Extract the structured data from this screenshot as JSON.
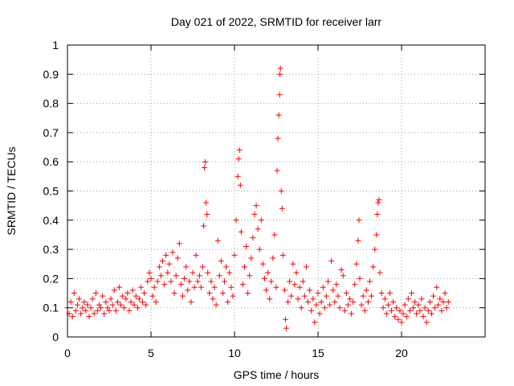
{
  "chart_data": {
    "type": "scatter",
    "title": "Day 021 of 2022, SRMTID for receiver larr",
    "xlabel": "GPS time / hours",
    "ylabel": "SRMTID / TECUs",
    "xlim": [
      0,
      25
    ],
    "ylim": [
      0,
      1
    ],
    "xticks": [
      0,
      5,
      10,
      15,
      20
    ],
    "xtick_labels": [
      "0",
      "5",
      "10",
      "15",
      "20"
    ],
    "yticks": [
      0,
      0.1,
      0.2,
      0.3,
      0.4,
      0.5,
      0.6,
      0.7,
      0.8,
      0.9,
      1
    ],
    "ytick_labels": [
      "0",
      "0.1",
      "0.2",
      "0.3",
      "0.4",
      "0.5",
      "0.6",
      "0.7",
      "0.8",
      "0.9",
      "1"
    ],
    "grid": true,
    "marker": "plus",
    "series_color": "#ff0000",
    "series": [
      {
        "name": "SRMTID",
        "points": [
          [
            0.0,
            0.1
          ],
          [
            0.1,
            0.08
          ],
          [
            0.2,
            0.12
          ],
          [
            0.3,
            0.07
          ],
          [
            0.4,
            0.15
          ],
          [
            0.5,
            0.09
          ],
          [
            0.6,
            0.11
          ],
          [
            0.7,
            0.13
          ],
          [
            0.8,
            0.08
          ],
          [
            0.9,
            0.1
          ],
          [
            1.0,
            0.12
          ],
          [
            1.1,
            0.09
          ],
          [
            1.2,
            0.11
          ],
          [
            1.3,
            0.07
          ],
          [
            1.4,
            0.1
          ],
          [
            1.5,
            0.13
          ],
          [
            1.6,
            0.08
          ],
          [
            1.7,
            0.15
          ],
          [
            1.8,
            0.09
          ],
          [
            1.9,
            0.11
          ],
          [
            2.0,
            0.1
          ],
          [
            2.1,
            0.14
          ],
          [
            2.2,
            0.08
          ],
          [
            2.3,
            0.12
          ],
          [
            2.4,
            0.1
          ],
          [
            2.5,
            0.09
          ],
          [
            2.6,
            0.13
          ],
          [
            2.7,
            0.11
          ],
          [
            2.8,
            0.16
          ],
          [
            2.9,
            0.09
          ],
          [
            3.0,
            0.12
          ],
          [
            3.1,
            0.17
          ],
          [
            3.2,
            0.11
          ],
          [
            3.3,
            0.14
          ],
          [
            3.4,
            0.1
          ],
          [
            3.5,
            0.13
          ],
          [
            3.6,
            0.15
          ],
          [
            3.7,
            0.09
          ],
          [
            3.8,
            0.12
          ],
          [
            3.9,
            0.16
          ],
          [
            4.0,
            0.11
          ],
          [
            4.1,
            0.14
          ],
          [
            4.2,
            0.1
          ],
          [
            4.3,
            0.13
          ],
          [
            4.4,
            0.17
          ],
          [
            4.5,
            0.12
          ],
          [
            4.6,
            0.15
          ],
          [
            4.7,
            0.11
          ],
          [
            4.8,
            0.19
          ],
          [
            4.9,
            0.22
          ],
          [
            5.0,
            0.2
          ],
          [
            5.1,
            0.14
          ],
          [
            5.2,
            0.17
          ],
          [
            5.3,
            0.12
          ],
          [
            5.4,
            0.19
          ],
          [
            5.5,
            0.24
          ],
          [
            5.6,
            0.21
          ],
          [
            5.7,
            0.26
          ],
          [
            5.8,
            0.18
          ],
          [
            5.9,
            0.28
          ],
          [
            6.0,
            0.22
          ],
          [
            6.1,
            0.25
          ],
          [
            6.2,
            0.19
          ],
          [
            6.3,
            0.29
          ],
          [
            6.4,
            0.15
          ],
          [
            6.5,
            0.21
          ],
          [
            6.6,
            0.27
          ],
          [
            6.7,
            0.32
          ],
          [
            6.8,
            0.18
          ],
          [
            6.9,
            0.14
          ],
          [
            7.0,
            0.2
          ],
          [
            7.1,
            0.24
          ],
          [
            7.2,
            0.16
          ],
          [
            7.3,
            0.19
          ],
          [
            7.4,
            0.12
          ],
          [
            7.5,
            0.22
          ],
          [
            7.6,
            0.17
          ],
          [
            7.7,
            0.28
          ],
          [
            7.8,
            0.19
          ],
          [
            7.9,
            0.21
          ],
          [
            8.0,
            0.17
          ],
          [
            8.1,
            0.24
          ],
          [
            8.15,
            0.38
          ],
          [
            8.2,
            0.58
          ],
          [
            8.25,
            0.6
          ],
          [
            8.3,
            0.46
          ],
          [
            8.35,
            0.42
          ],
          [
            8.4,
            0.22
          ],
          [
            8.5,
            0.15
          ],
          [
            8.6,
            0.19
          ],
          [
            8.7,
            0.13
          ],
          [
            8.8,
            0.17
          ],
          [
            8.9,
            0.11
          ],
          [
            9.0,
            0.33
          ],
          [
            9.1,
            0.21
          ],
          [
            9.2,
            0.26
          ],
          [
            9.3,
            0.15
          ],
          [
            9.4,
            0.19
          ],
          [
            9.5,
            0.24
          ],
          [
            9.6,
            0.12
          ],
          [
            9.7,
            0.22
          ],
          [
            9.8,
            0.17
          ],
          [
            9.9,
            0.14
          ],
          [
            10.0,
            0.28
          ],
          [
            10.1,
            0.4
          ],
          [
            10.2,
            0.55
          ],
          [
            10.25,
            0.61
          ],
          [
            10.3,
            0.64
          ],
          [
            10.35,
            0.52
          ],
          [
            10.4,
            0.36
          ],
          [
            10.5,
            0.18
          ],
          [
            10.6,
            0.24
          ],
          [
            10.7,
            0.31
          ],
          [
            10.8,
            0.15
          ],
          [
            10.9,
            0.21
          ],
          [
            11.0,
            0.27
          ],
          [
            11.1,
            0.34
          ],
          [
            11.2,
            0.42
          ],
          [
            11.3,
            0.45
          ],
          [
            11.4,
            0.37
          ],
          [
            11.5,
            0.3
          ],
          [
            11.6,
            0.4
          ],
          [
            11.7,
            0.25
          ],
          [
            11.8,
            0.2
          ],
          [
            11.9,
            0.16
          ],
          [
            12.0,
            0.22
          ],
          [
            12.1,
            0.13
          ],
          [
            12.2,
            0.19
          ],
          [
            12.3,
            0.27
          ],
          [
            12.4,
            0.35
          ],
          [
            12.5,
            0.17
          ],
          [
            12.55,
            0.57
          ],
          [
            12.6,
            0.68
          ],
          [
            12.65,
            0.76
          ],
          [
            12.7,
            0.83
          ],
          [
            12.72,
            0.9
          ],
          [
            12.75,
            0.92
          ],
          [
            12.8,
            0.5
          ],
          [
            12.85,
            0.44
          ],
          [
            12.9,
            0.28
          ],
          [
            13.0,
            0.16
          ],
          [
            13.05,
            0.06
          ],
          [
            13.1,
            0.03
          ],
          [
            13.2,
            0.12
          ],
          [
            13.3,
            0.19
          ],
          [
            13.4,
            0.14
          ],
          [
            13.5,
            0.25
          ],
          [
            13.6,
            0.18
          ],
          [
            13.7,
            0.22
          ],
          [
            13.8,
            0.13
          ],
          [
            13.9,
            0.17
          ],
          [
            14.0,
            0.1
          ],
          [
            14.1,
            0.19
          ],
          [
            14.2,
            0.14
          ],
          [
            14.3,
            0.24
          ],
          [
            14.4,
            0.12
          ],
          [
            14.5,
            0.16
          ],
          [
            14.6,
            0.09
          ],
          [
            14.7,
            0.13
          ],
          [
            14.8,
            0.05
          ],
          [
            14.9,
            0.11
          ],
          [
            15.0,
            0.15
          ],
          [
            15.1,
            0.08
          ],
          [
            15.2,
            0.12
          ],
          [
            15.3,
            0.17
          ],
          [
            15.4,
            0.1
          ],
          [
            15.5,
            0.14
          ],
          [
            15.6,
            0.19
          ],
          [
            15.7,
            0.11
          ],
          [
            15.8,
            0.26
          ],
          [
            15.9,
            0.16
          ],
          [
            16.0,
            0.12
          ],
          [
            16.1,
            0.18
          ],
          [
            16.2,
            0.14
          ],
          [
            16.3,
            0.1
          ],
          [
            16.4,
            0.23
          ],
          [
            16.5,
            0.21
          ],
          [
            16.6,
            0.09
          ],
          [
            16.7,
            0.15
          ],
          [
            16.8,
            0.11
          ],
          [
            16.9,
            0.13
          ],
          [
            17.0,
            0.08
          ],
          [
            17.1,
            0.12
          ],
          [
            17.2,
            0.18
          ],
          [
            17.3,
            0.25
          ],
          [
            17.4,
            0.33
          ],
          [
            17.45,
            0.4
          ],
          [
            17.5,
            0.2
          ],
          [
            17.6,
            0.11
          ],
          [
            17.7,
            0.14
          ],
          [
            17.8,
            0.09
          ],
          [
            17.9,
            0.16
          ],
          [
            18.0,
            0.12
          ],
          [
            18.1,
            0.19
          ],
          [
            18.2,
            0.14
          ],
          [
            18.3,
            0.24
          ],
          [
            18.4,
            0.3
          ],
          [
            18.5,
            0.35
          ],
          [
            18.55,
            0.42
          ],
          [
            18.6,
            0.46
          ],
          [
            18.65,
            0.47
          ],
          [
            18.7,
            0.22
          ],
          [
            18.8,
            0.15
          ],
          [
            18.9,
            0.1
          ],
          [
            19.0,
            0.13
          ],
          [
            19.1,
            0.08
          ],
          [
            19.2,
            0.11
          ],
          [
            19.3,
            0.15
          ],
          [
            19.4,
            0.09
          ],
          [
            19.5,
            0.12
          ],
          [
            19.6,
            0.07
          ],
          [
            19.7,
            0.1
          ],
          [
            19.8,
            0.06
          ],
          [
            19.9,
            0.09
          ],
          [
            20.0,
            0.05
          ],
          [
            20.1,
            0.08
          ],
          [
            20.2,
            0.11
          ],
          [
            20.3,
            0.07
          ],
          [
            20.4,
            0.13
          ],
          [
            20.5,
            0.09
          ],
          [
            20.6,
            0.15
          ],
          [
            20.7,
            0.1
          ],
          [
            20.8,
            0.12
          ],
          [
            20.9,
            0.08
          ],
          [
            21.0,
            0.11
          ],
          [
            21.1,
            0.09
          ],
          [
            21.2,
            0.13
          ],
          [
            21.3,
            0.07
          ],
          [
            21.4,
            0.1
          ],
          [
            21.5,
            0.05
          ],
          [
            21.6,
            0.09
          ],
          [
            21.7,
            0.12
          ],
          [
            21.8,
            0.08
          ],
          [
            21.9,
            0.14
          ],
          [
            22.0,
            0.1
          ],
          [
            22.1,
            0.17
          ],
          [
            22.2,
            0.11
          ],
          [
            22.3,
            0.13
          ],
          [
            22.4,
            0.09
          ],
          [
            22.5,
            0.12
          ],
          [
            22.6,
            0.15
          ],
          [
            22.7,
            0.1
          ],
          [
            22.8,
            0.12
          ]
        ]
      }
    ]
  }
}
